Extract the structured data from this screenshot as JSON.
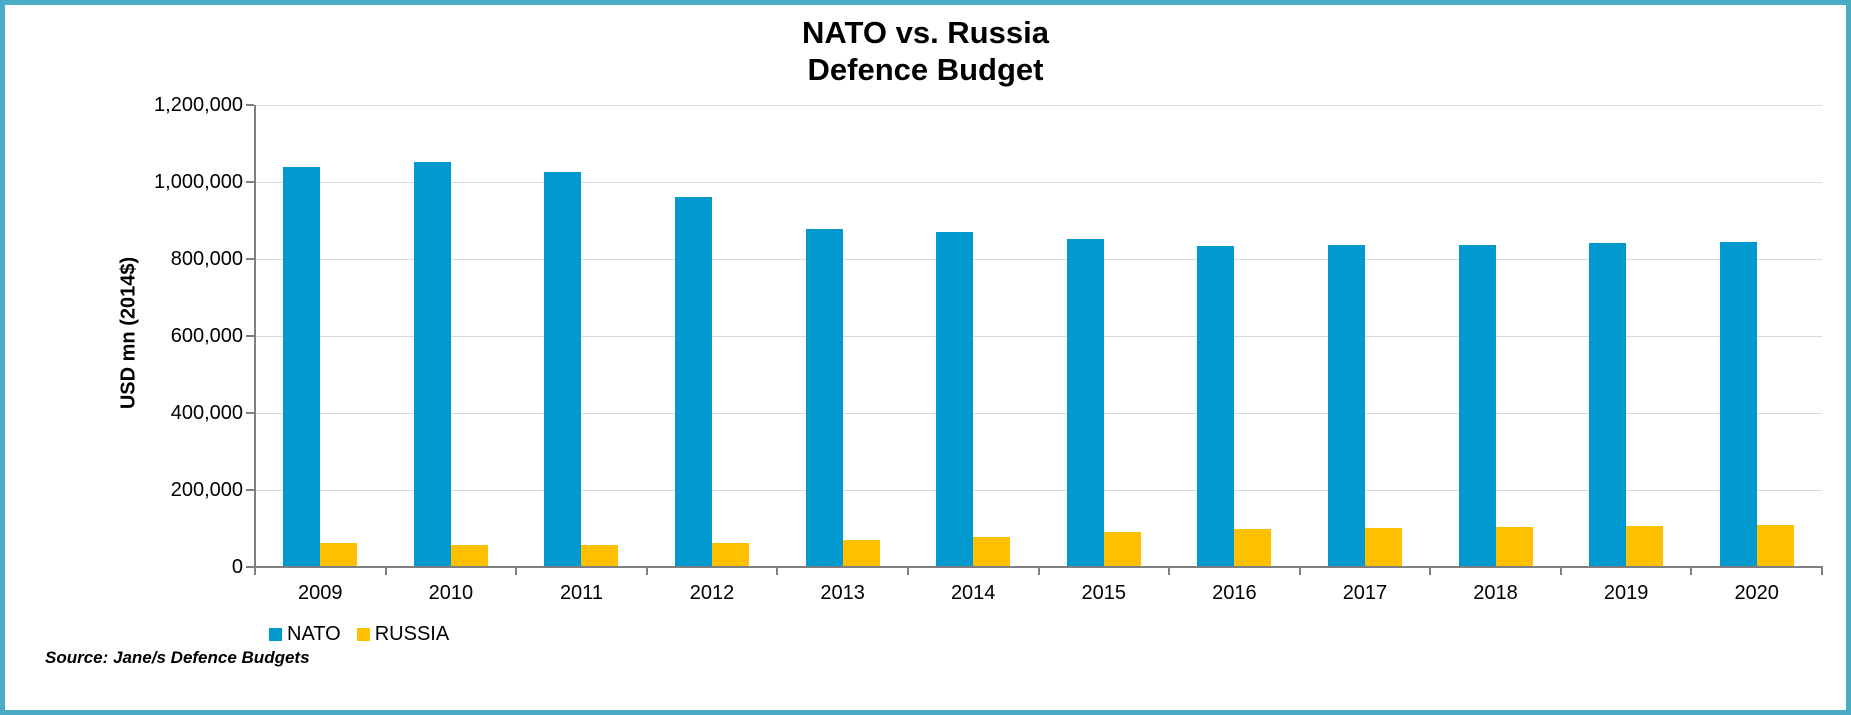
{
  "frame": {
    "border_color": "#4AABC5",
    "background_color": "#FFFFFF"
  },
  "title": {
    "line1": "NATO vs. Russia",
    "line2": "Defence Budget"
  },
  "source": "Source: Jane/s Defence Budgets",
  "legend": [
    {
      "label": "NATO",
      "color": "#0099D0"
    },
    {
      "label": "RUSSIA",
      "color": "#FFC000"
    }
  ],
  "chart_data": {
    "type": "bar",
    "title": "NATO vs. Russia Defence Budget",
    "xlabel": "",
    "ylabel": "USD mn (2014$)",
    "categories": [
      "2009",
      "2010",
      "2011",
      "2012",
      "2013",
      "2014",
      "2015",
      "2016",
      "2017",
      "2018",
      "2019",
      "2020"
    ],
    "series": [
      {
        "name": "NATO",
        "color": "#0099D0",
        "values": [
          1039000,
          1051000,
          1026000,
          962000,
          879000,
          870000,
          851000,
          833000,
          837000,
          837000,
          841000,
          845000
        ]
      },
      {
        "name": "RUSSIA",
        "color": "#FFC000",
        "values": [
          62000,
          56000,
          56000,
          62000,
          70000,
          79000,
          91000,
          98000,
          101000,
          103000,
          106000,
          108000
        ]
      }
    ],
    "ylim": [
      0,
      1200000
    ],
    "ytick_step": 200000,
    "ytick_labels": [
      "0",
      "200,000",
      "400,000",
      "600,000",
      "800,000",
      "1,000,000",
      "1,200,000"
    ],
    "grid": true,
    "gridline_color": "#D9D9D9",
    "axis_color": "#7F7F7F",
    "legend_position": "bottom-left"
  }
}
